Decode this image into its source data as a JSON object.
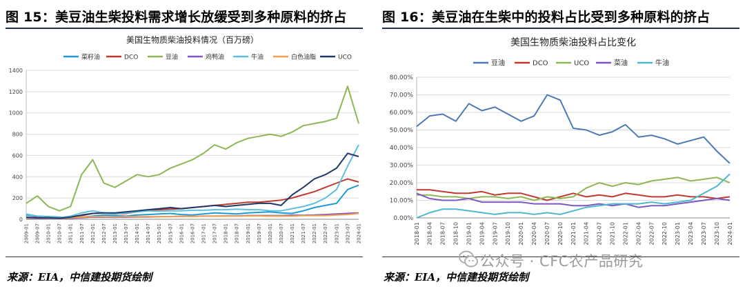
{
  "figures": {
    "left_title": "图 15：美豆油生柴投料需求增长放缓受到多种原料的挤占",
    "right_title": "图 16：美豆油在生柴中的投料占比受到多种原料的挤占",
    "left_source": "来源：EIA，中信建投期货绘制",
    "right_source": "来源：EIA，中信建投期货绘制"
  },
  "watermark": {
    "text": "公众号 · CFC农产品研究",
    "icon": "wechat-logo-icon"
  },
  "chart_data": [
    {
      "type": "line",
      "title": "美国生物质柴油投料情况（百万磅）",
      "xlabel": "",
      "ylabel": "",
      "ylim": [
        0,
        1400
      ],
      "yticks": [
        0,
        200,
        400,
        600,
        800,
        1000,
        1200,
        1400
      ],
      "grid": true,
      "legend": "top",
      "x_tick_labels": [
        "2009-01",
        "2009-07",
        "2010-01",
        "2010-07",
        "2011-01",
        "2011-07",
        "2012-01",
        "2012-07",
        "2013-01",
        "2013-07",
        "2014-01",
        "2014-07",
        "2015-01",
        "2015-07",
        "2016-01",
        "2016-07",
        "2017-01",
        "2017-07",
        "2018-01",
        "2018-07",
        "2019-01",
        "2019-07",
        "2020-01",
        "2020-07",
        "2021-01",
        "2021-07",
        "2022-01",
        "2022-07",
        "2023-01",
        "2023-07",
        "2024-01"
      ],
      "series": [
        {
          "name": "菜籽油",
          "color": "#1e9bd7",
          "values": [
            40,
            30,
            25,
            20,
            15,
            20,
            30,
            40,
            35,
            30,
            40,
            45,
            50,
            55,
            45,
            40,
            50,
            60,
            55,
            50,
            60,
            65,
            70,
            60,
            55,
            80,
            110,
            130,
            150,
            280,
            320
          ]
        },
        {
          "name": "DCO",
          "color": "#c0392b",
          "values": [
            15,
            20,
            20,
            15,
            25,
            35,
            55,
            60,
            50,
            55,
            70,
            85,
            90,
            95,
            100,
            110,
            120,
            130,
            140,
            150,
            160,
            160,
            170,
            180,
            200,
            230,
            260,
            300,
            340,
            380,
            350
          ]
        },
        {
          "name": "豆油",
          "color": "#8db654",
          "values": [
            150,
            220,
            120,
            80,
            120,
            420,
            560,
            340,
            300,
            360,
            420,
            400,
            420,
            480,
            520,
            560,
            620,
            700,
            660,
            720,
            760,
            780,
            800,
            780,
            820,
            880,
            900,
            920,
            950,
            1250,
            900
          ]
        },
        {
          "name": "鸡鸭油",
          "color": "#7e57c2",
          "values": [
            10,
            10,
            8,
            8,
            10,
            15,
            20,
            20,
            18,
            20,
            22,
            22,
            25,
            25,
            28,
            28,
            30,
            30,
            32,
            32,
            35,
            35,
            35,
            35,
            38,
            38,
            40,
            45,
            50,
            55,
            60
          ]
        },
        {
          "name": "牛油",
          "color": "#5bc0de",
          "values": [
            50,
            30,
            20,
            15,
            30,
            60,
            80,
            60,
            50,
            60,
            70,
            80,
            75,
            80,
            80,
            85,
            85,
            90,
            90,
            95,
            90,
            90,
            80,
            80,
            100,
            120,
            150,
            200,
            280,
            500,
            700
          ]
        },
        {
          "name": "白色油脂",
          "color": "#f0a04b",
          "values": [
            15,
            15,
            12,
            10,
            15,
            20,
            25,
            25,
            22,
            25,
            25,
            25,
            25,
            25,
            28,
            28,
            30,
            30,
            30,
            30,
            32,
            32,
            30,
            30,
            30,
            35,
            35,
            35,
            40,
            45,
            55
          ]
        },
        {
          "name": "UCO",
          "color": "#1f3a68",
          "values": [
            20,
            15,
            15,
            10,
            20,
            40,
            55,
            60,
            60,
            70,
            80,
            90,
            100,
            110,
            100,
            110,
            120,
            130,
            120,
            130,
            140,
            150,
            150,
            130,
            230,
            300,
            380,
            420,
            480,
            620,
            590
          ]
        }
      ]
    },
    {
      "type": "line",
      "title": "美国生物质柴油投料占比变化",
      "xlabel": "",
      "ylabel": "",
      "ylim": [
        0,
        80
      ],
      "yticks": [
        "0.00%",
        "10.00%",
        "20.00%",
        "30.00%",
        "40.00%",
        "50.00%",
        "60.00%",
        "70.00%",
        "80.00%"
      ],
      "grid": true,
      "legend": "top",
      "x_tick_labels": [
        "2018-01",
        "2018-04",
        "2018-07",
        "2018-10",
        "2019-01",
        "2019-04",
        "2019-07",
        "2019-10",
        "2020-01",
        "2020-04",
        "2020-07",
        "2020-10",
        "2021-01",
        "2021-04",
        "2021-07",
        "2021-10",
        "2022-01",
        "2022-04",
        "2022-07",
        "2022-10",
        "2023-01",
        "2023-04",
        "2023-07",
        "2023-10",
        "2024-01"
      ],
      "series": [
        {
          "name": "豆油",
          "color": "#4a7ab5",
          "values": [
            52,
            58,
            59,
            55,
            65,
            61,
            63,
            59,
            55,
            58,
            70,
            67,
            51,
            50,
            47,
            49,
            53,
            46,
            47,
            45,
            42,
            44,
            46,
            38,
            31
          ]
        },
        {
          "name": "DCO",
          "color": "#c0392b",
          "values": [
            16,
            16,
            15,
            14,
            14,
            15,
            13,
            14,
            14,
            12,
            10,
            12,
            14,
            12,
            13,
            12,
            14,
            13,
            12,
            12,
            13,
            12,
            12,
            11,
            12
          ]
        },
        {
          "name": "UCO",
          "color": "#8db654",
          "values": [
            13,
            13,
            12,
            12,
            11,
            12,
            12,
            11,
            12,
            10,
            12,
            11,
            12,
            17,
            20,
            18,
            20,
            19,
            21,
            22,
            23,
            21,
            22,
            23,
            20
          ]
        },
        {
          "name": "菜油",
          "color": "#7e57c2",
          "values": [
            14,
            11,
            10,
            10,
            11,
            9,
            9,
            9,
            9,
            8,
            8,
            8,
            7,
            7,
            8,
            7,
            8,
            6,
            7,
            7,
            8,
            9,
            10,
            11,
            10
          ]
        },
        {
          "name": "牛油",
          "color": "#4bb8d0",
          "values": [
            0,
            3,
            5,
            5,
            4,
            3,
            2,
            3,
            3,
            2,
            3,
            2,
            4,
            6,
            7,
            8,
            8,
            8,
            9,
            8,
            9,
            10,
            14,
            18,
            25
          ]
        }
      ]
    }
  ]
}
